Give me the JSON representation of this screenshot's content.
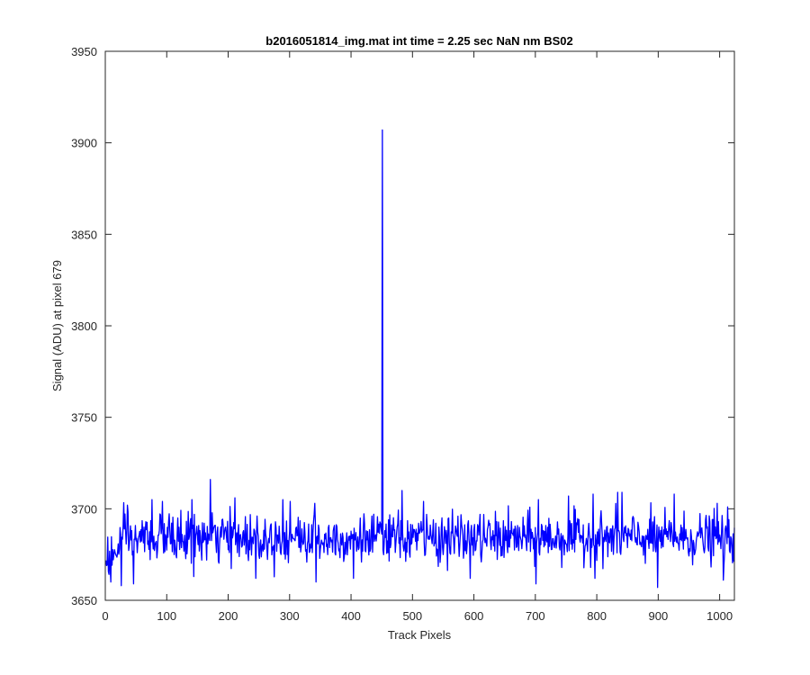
{
  "chart_data": {
    "type": "line",
    "title": "b2016051814_img.mat int time = 2.25 sec  NaN nm BS02",
    "xlabel": "Track Pixels",
    "ylabel": "Signal (ADU) at pixel 679",
    "xlim": [
      0,
      1024
    ],
    "ylim": [
      3650,
      3950
    ],
    "xticks": [
      0,
      100,
      200,
      300,
      400,
      500,
      600,
      700,
      800,
      900,
      1000
    ],
    "yticks": [
      3650,
      3700,
      3750,
      3800,
      3850,
      3900,
      3950
    ],
    "grid": false,
    "line_color": "#0000ff",
    "series": [
      {
        "n_points": 1024,
        "baseline": 3684,
        "noise_range": [
          3657,
          3716
        ],
        "peaks": [
          {
            "x": 8,
            "y": 3660
          },
          {
            "x": 25,
            "y": 3658
          },
          {
            "x": 35,
            "y": 3702
          },
          {
            "x": 45,
            "y": 3659
          },
          {
            "x": 75,
            "y": 3705
          },
          {
            "x": 92,
            "y": 3704
          },
          {
            "x": 140,
            "y": 3705
          },
          {
            "x": 143,
            "y": 3663
          },
          {
            "x": 170,
            "y": 3716
          },
          {
            "x": 210,
            "y": 3706
          },
          {
            "x": 244,
            "y": 3662
          },
          {
            "x": 288,
            "y": 3705
          },
          {
            "x": 300,
            "y": 3704
          },
          {
            "x": 340,
            "y": 3703
          },
          {
            "x": 342,
            "y": 3660
          },
          {
            "x": 403,
            "y": 3662
          },
          {
            "x": 450,
            "y": 3907
          },
          {
            "x": 482,
            "y": 3710
          },
          {
            "x": 517,
            "y": 3704
          },
          {
            "x": 593,
            "y": 3662
          },
          {
            "x": 700,
            "y": 3659
          },
          {
            "x": 704,
            "y": 3705
          },
          {
            "x": 753,
            "y": 3707
          },
          {
            "x": 793,
            "y": 3708
          },
          {
            "x": 796,
            "y": 3662
          },
          {
            "x": 833,
            "y": 3709
          },
          {
            "x": 840,
            "y": 3709
          },
          {
            "x": 898,
            "y": 3657
          },
          {
            "x": 925,
            "y": 3708
          },
          {
            "x": 995,
            "y": 3703
          },
          {
            "x": 1005,
            "y": 3661
          }
        ]
      }
    ]
  }
}
